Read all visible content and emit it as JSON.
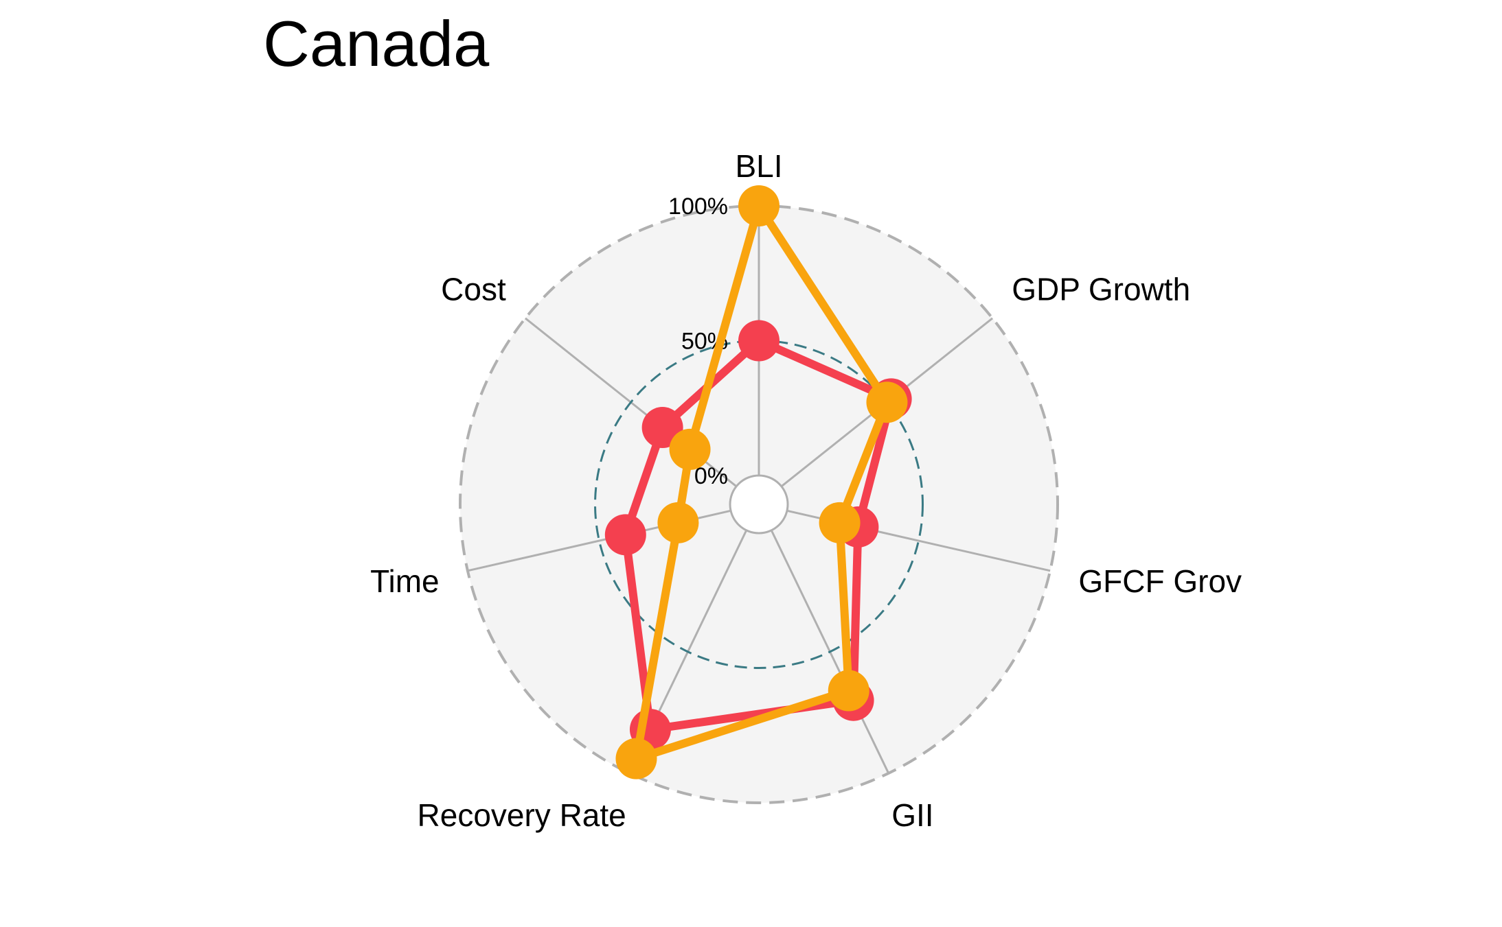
{
  "chart_data": {
    "type": "radar",
    "title": "Canada",
    "axes": [
      "BLI",
      "GDP Growth",
      "GFCF Grov",
      "GII",
      "Recovery Rate",
      "Time",
      "Cost"
    ],
    "grid_labels": [
      "0%",
      "50%",
      "100%"
    ],
    "range": [
      0,
      100
    ],
    "series": [
      {
        "values": [
          50,
          52,
          27,
          70,
          82,
          40,
          35
        ],
        "color": "#f4404f"
      },
      {
        "values": [
          100,
          50,
          20,
          66,
          94,
          20,
          22
        ],
        "color": "#f9a40e"
      }
    ],
    "colors": {
      "background_disc": "#f4f4f4",
      "outer_ring": "#b0b0b0",
      "mid_ring": "#3a7a84",
      "spokes": "#b0b0b0"
    }
  }
}
